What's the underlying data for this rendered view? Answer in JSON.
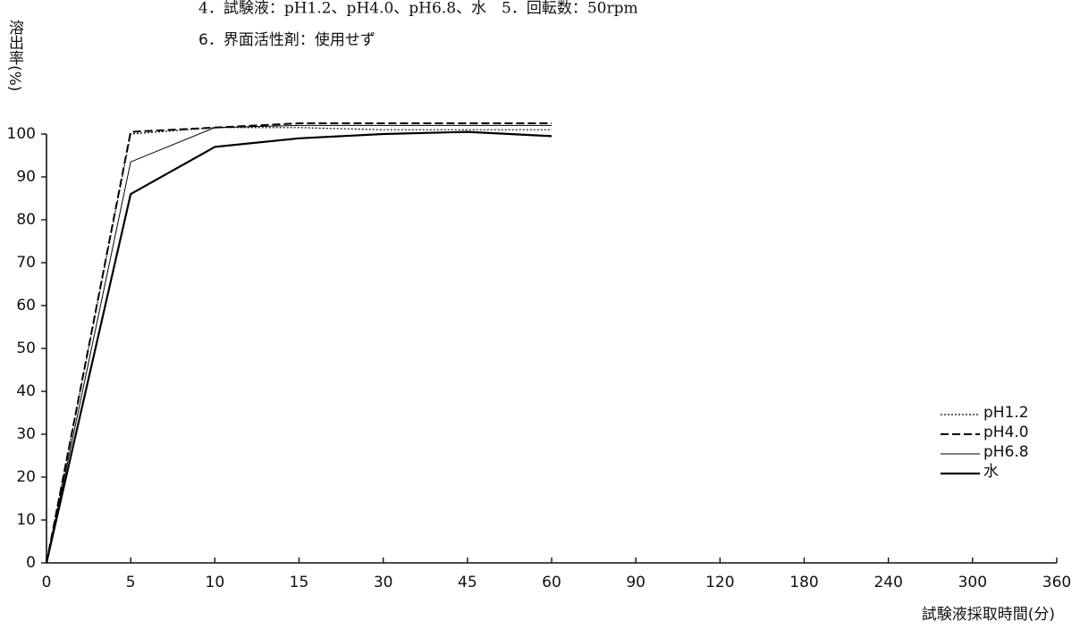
{
  "chart_data": {
    "type": "line",
    "notes": [
      "4．試験液：pH1.2、pH4.0、pH6.8、水　5．回転数：50rpm",
      "6．界面活性剤：使用せず"
    ],
    "y_label": "溶出率(%)",
    "x_label": "試験液採取時間(分)",
    "categories": [
      "0",
      "5",
      "10",
      "15",
      "30",
      "45",
      "60",
      "90",
      "120",
      "180",
      "240",
      "300",
      "360"
    ],
    "series": [
      {
        "name": "pH1.2",
        "color": "#000000",
        "style": "dotted",
        "values": [
          0,
          100,
          101.5,
          101.5,
          101,
          101,
          101,
          null,
          null,
          null,
          null,
          null,
          null
        ]
      },
      {
        "name": "pH4.0",
        "color": "#000000",
        "style": "dashed",
        "values": [
          0,
          100.5,
          101.5,
          102.5,
          102.5,
          102.5,
          102.5,
          null,
          null,
          null,
          null,
          null,
          null
        ]
      },
      {
        "name": "pH6.8",
        "color": "#000000",
        "style": "thin",
        "values": [
          0,
          93.5,
          101.5,
          102,
          102,
          102,
          102,
          null,
          null,
          null,
          null,
          null,
          null
        ]
      },
      {
        "name": "水",
        "color": "#000000",
        "style": "thick",
        "values": [
          0,
          86,
          97,
          99,
          100,
          100.5,
          99.5,
          null,
          null,
          null,
          null,
          null,
          null
        ]
      }
    ],
    "ylim": [
      0,
      100
    ],
    "yticks": [
      0,
      10,
      20,
      30,
      40,
      50,
      60,
      70,
      80,
      90,
      100
    ],
    "legend": "lower right",
    "grid": false
  }
}
